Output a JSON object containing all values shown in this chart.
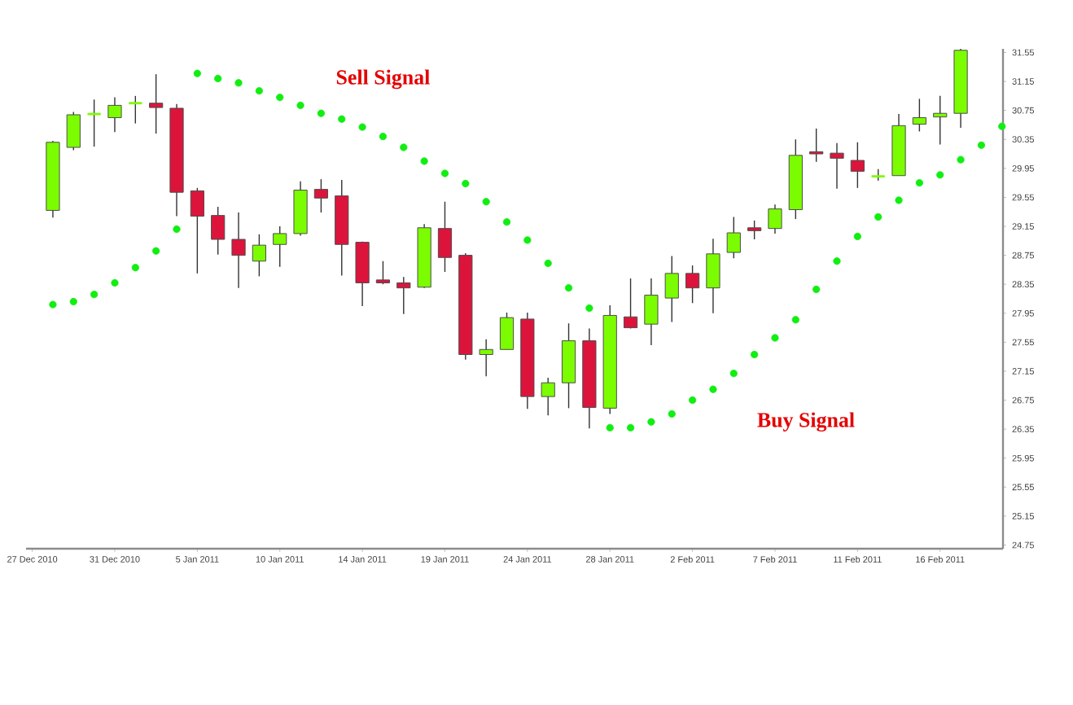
{
  "chart_data": {
    "type": "candlestick",
    "categories": [
      "27 Dec 2010",
      null,
      null,
      null,
      "31 Dec 2010",
      null,
      null,
      null,
      "5 Jan 2011",
      null,
      null,
      null,
      "10 Jan 2011",
      null,
      null,
      null,
      "14 Jan 2011",
      null,
      null,
      null,
      "19 Jan 2011",
      null,
      null,
      null,
      "24 Jan 2011",
      null,
      null,
      null,
      "28 Jan 2011",
      null,
      null,
      null,
      "2 Feb 2011",
      null,
      null,
      null,
      "7 Feb 2011",
      null,
      null,
      null,
      "11 Feb 2011",
      null,
      null,
      null,
      "16 Feb 2011",
      null,
      null,
      null
    ],
    "ohlc": [
      null,
      [
        29.37,
        30.33,
        29.27,
        30.31
      ],
      [
        30.24,
        30.73,
        30.2,
        30.69
      ],
      [
        30.7,
        30.9,
        30.25,
        30.71
      ],
      [
        30.65,
        30.93,
        30.45,
        30.82
      ],
      [
        30.85,
        30.95,
        30.57,
        30.86
      ],
      [
        30.85,
        31.25,
        30.43,
        30.79
      ],
      [
        30.78,
        30.84,
        29.29,
        29.62
      ],
      [
        29.64,
        29.68,
        28.5,
        29.29
      ],
      [
        29.3,
        29.42,
        28.76,
        28.97
      ],
      [
        28.97,
        29.34,
        28.3,
        28.75
      ],
      [
        28.67,
        29.04,
        28.46,
        28.89
      ],
      [
        28.9,
        29.15,
        28.59,
        29.05
      ],
      [
        29.05,
        29.77,
        29.02,
        29.65
      ],
      [
        29.66,
        29.8,
        29.34,
        29.54
      ],
      [
        29.57,
        29.79,
        28.47,
        28.9
      ],
      [
        28.93,
        28.94,
        28.05,
        28.37
      ],
      [
        28.41,
        28.67,
        28.35,
        28.37
      ],
      [
        28.37,
        28.45,
        27.94,
        28.3
      ],
      [
        28.31,
        29.18,
        28.3,
        29.13
      ],
      [
        29.12,
        29.49,
        28.52,
        28.72
      ],
      [
        28.75,
        28.78,
        27.31,
        27.38
      ],
      [
        27.38,
        27.59,
        27.08,
        27.45
      ],
      [
        27.45,
        27.96,
        27.45,
        27.89
      ],
      [
        27.87,
        27.96,
        26.63,
        26.8
      ],
      [
        26.8,
        27.06,
        26.54,
        26.99
      ],
      [
        26.99,
        27.81,
        26.64,
        27.57
      ],
      [
        27.57,
        27.74,
        26.36,
        26.65
      ],
      [
        26.64,
        28.06,
        26.56,
        27.92
      ],
      [
        27.9,
        28.43,
        27.74,
        27.75
      ],
      [
        27.8,
        28.43,
        27.51,
        28.2
      ],
      [
        28.16,
        28.74,
        27.83,
        28.5
      ],
      [
        28.5,
        28.61,
        28.09,
        28.3
      ],
      [
        28.3,
        28.98,
        27.95,
        28.77
      ],
      [
        28.79,
        29.28,
        28.71,
        29.06
      ],
      [
        29.13,
        29.23,
        28.97,
        29.09
      ],
      [
        29.12,
        29.45,
        29.05,
        29.39
      ],
      [
        29.38,
        30.35,
        29.25,
        30.13
      ],
      [
        30.18,
        30.5,
        30.04,
        30.15
      ],
      [
        30.16,
        30.3,
        29.67,
        30.09
      ],
      [
        30.06,
        30.31,
        29.68,
        29.91
      ],
      [
        29.84,
        29.94,
        29.78,
        29.86
      ],
      [
        29.85,
        30.7,
        29.85,
        30.54
      ],
      [
        30.56,
        30.91,
        30.46,
        30.65
      ],
      [
        30.66,
        30.95,
        30.28,
        30.71
      ],
      [
        30.71,
        31.6,
        30.51,
        31.58
      ],
      null,
      null
    ],
    "colors": [
      null,
      "#7cfc00",
      "#7cfc00",
      "#7cfc00",
      "#7cfc00",
      "#7cfc00",
      "#dc143c",
      "#dc143c",
      "#dc143c",
      "#dc143c",
      "#dc143c",
      "#7cfc00",
      "#7cfc00",
      "#7cfc00",
      "#dc143c",
      "#dc143c",
      "#dc143c",
      "#dc143c",
      "#dc143c",
      "#7cfc00",
      "#dc143c",
      "#dc143c",
      "#7cfc00",
      "#7cfc00",
      "#dc143c",
      "#7cfc00",
      "#7cfc00",
      "#dc143c",
      "#7cfc00",
      "#dc143c",
      "#7cfc00",
      "#7cfc00",
      "#dc143c",
      "#7cfc00",
      "#7cfc00",
      "#dc143c",
      "#7cfc00",
      "#7cfc00",
      "#dc143c",
      "#dc143c",
      "#dc143c",
      "#7cfc00",
      "#7cfc00",
      "#7cfc00",
      "#7cfc00",
      "#7cfc00",
      null,
      null
    ],
    "series": [
      {
        "type": "scatter",
        "color": "#11ee11",
        "values": [
          null,
          28.07,
          28.11,
          28.21,
          28.37,
          28.58,
          28.81,
          29.11,
          31.26,
          31.19,
          31.13,
          31.02,
          30.93,
          30.82,
          30.71,
          30.63,
          30.52,
          30.39,
          30.24,
          30.05,
          29.88,
          29.74,
          29.49,
          29.21,
          28.96,
          28.64,
          28.3,
          28.02,
          26.37,
          26.37,
          26.45,
          26.56,
          26.75,
          26.9,
          27.12,
          27.38,
          27.61,
          27.86,
          28.28,
          28.67,
          29.01,
          29.28,
          29.51,
          29.75,
          29.86,
          30.07,
          30.27,
          30.53
        ]
      }
    ],
    "ylim": [
      24.7,
      31.6
    ],
    "yticks": [
      24.75,
      25.15,
      25.55,
      25.95,
      26.35,
      26.75,
      27.15,
      27.55,
      27.95,
      28.35,
      28.75,
      29.15,
      29.55,
      29.95,
      30.35,
      30.75,
      31.15,
      31.55
    ],
    "annotations": [
      "Sell Signal",
      "Buy Signal"
    ]
  }
}
